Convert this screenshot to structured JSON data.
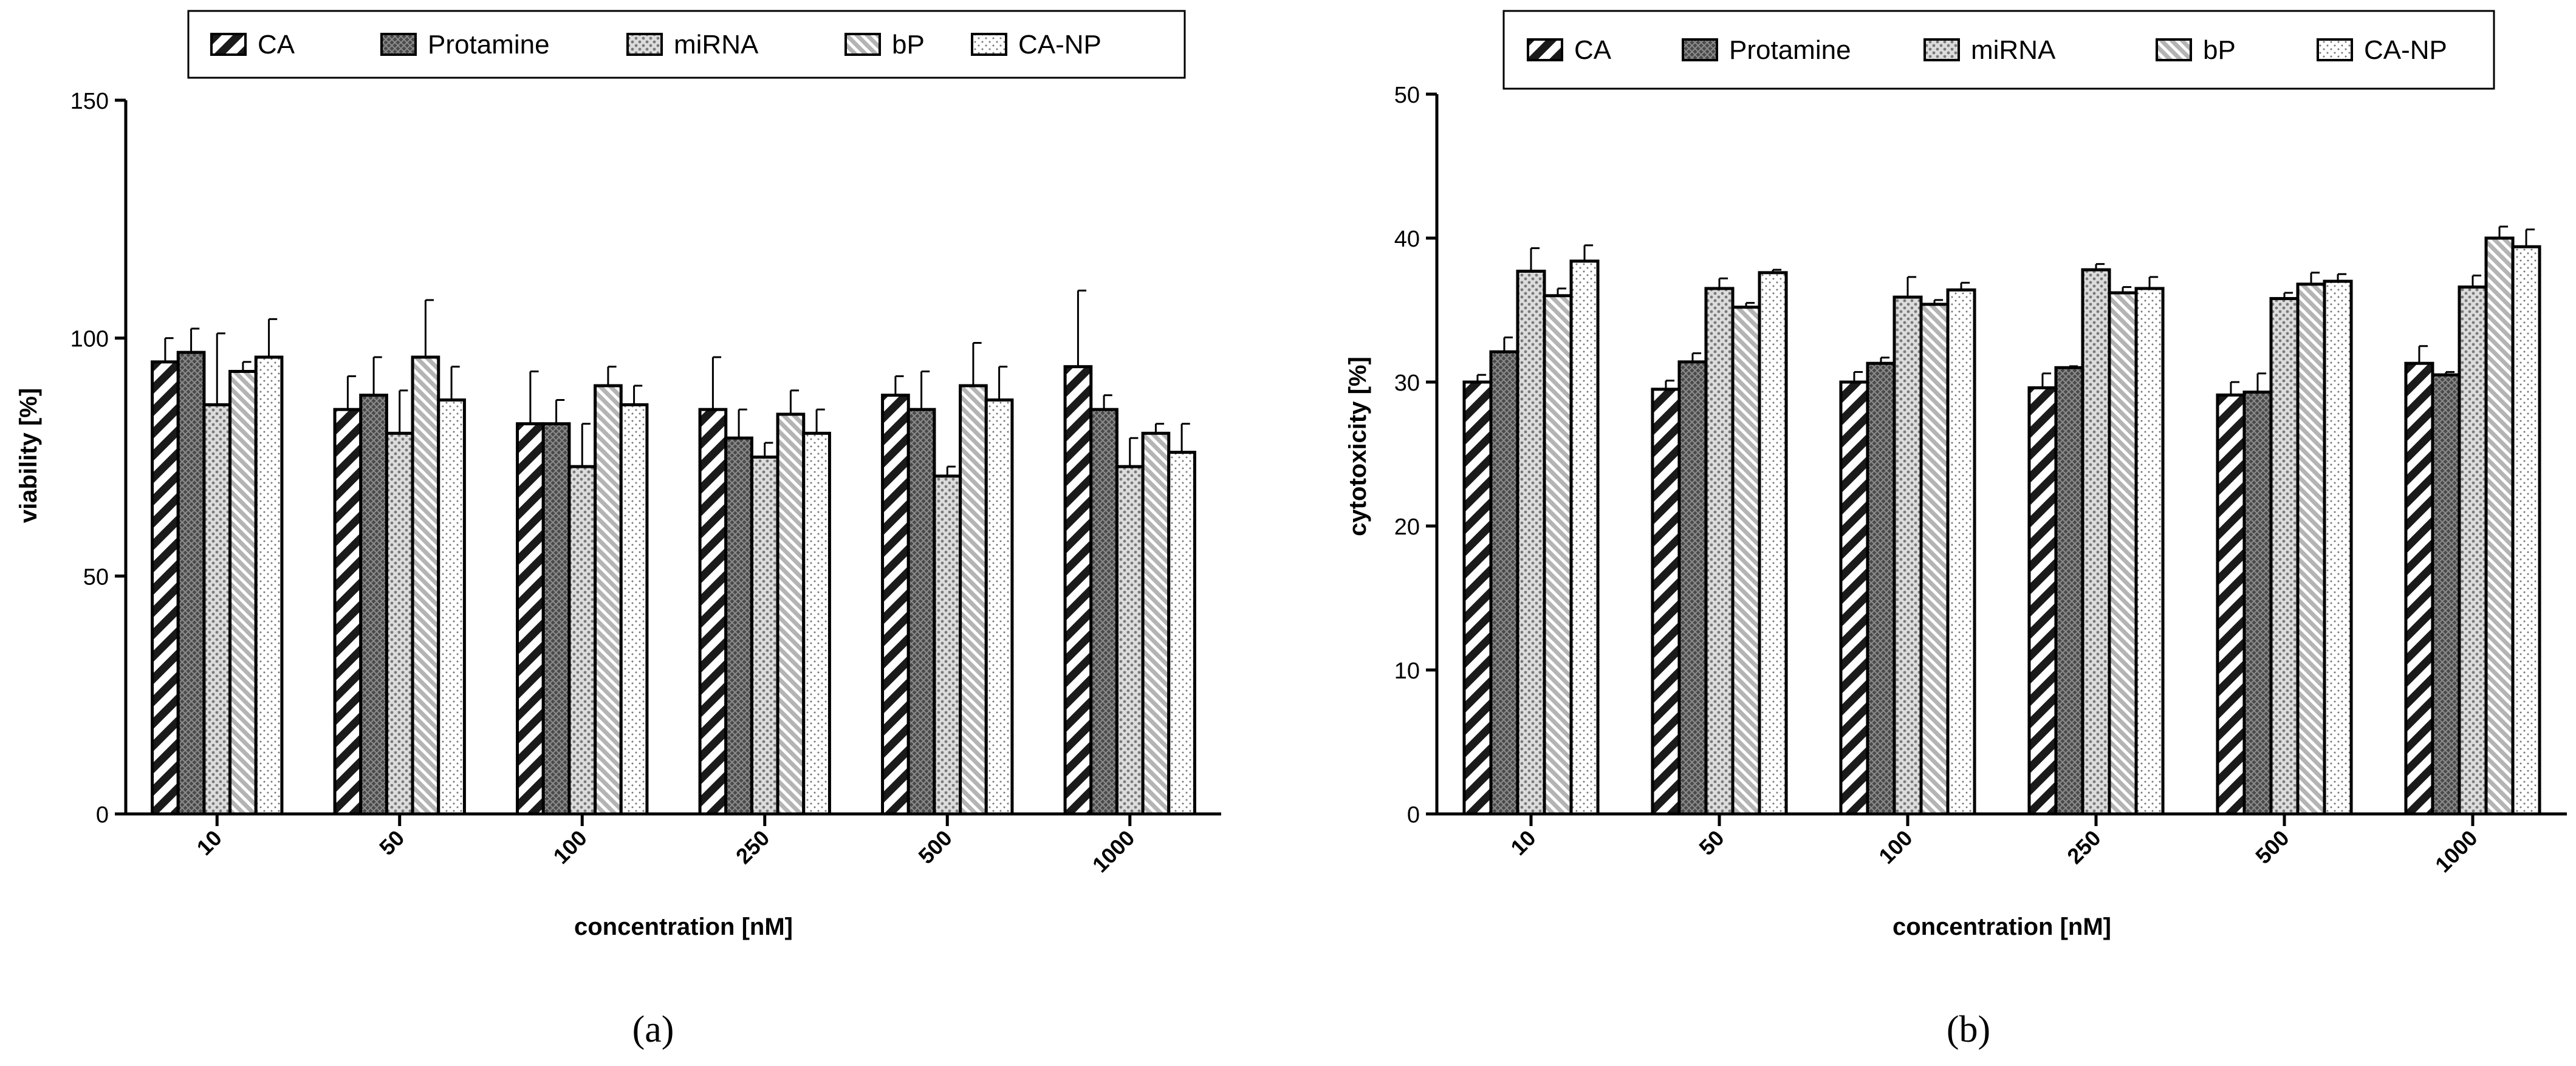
{
  "legend_labels": [
    "CA",
    "Protamine",
    "miRNA",
    "bP",
    "CA-NP"
  ],
  "chart_data": [
    {
      "type": "bar",
      "panel_label": "(a)",
      "xlabel": "concentration [nM]",
      "ylabel": "viability [%]",
      "ylim": [
        0,
        150
      ],
      "yticks": [
        0,
        50,
        100,
        150
      ],
      "categories": [
        "10",
        "50",
        "100",
        "250",
        "500",
        "1000"
      ],
      "series": [
        {
          "name": "CA",
          "values": [
            95,
            85,
            82,
            85,
            88,
            94
          ],
          "errors": [
            5,
            7,
            11,
            11,
            4,
            16
          ]
        },
        {
          "name": "Protamine",
          "values": [
            97,
            88,
            82,
            79,
            85,
            85
          ],
          "errors": [
            5,
            8,
            5,
            6,
            8,
            3
          ]
        },
        {
          "name": "miRNA",
          "values": [
            86,
            80,
            73,
            75,
            71,
            73
          ],
          "errors": [
            15,
            9,
            9,
            3,
            2,
            6
          ]
        },
        {
          "name": "bP",
          "values": [
            93,
            96,
            90,
            84,
            90,
            80
          ],
          "errors": [
            2,
            12,
            4,
            5,
            9,
            2
          ]
        },
        {
          "name": "CA-NP",
          "values": [
            96,
            87,
            86,
            80,
            87,
            76
          ],
          "errors": [
            8,
            7,
            4,
            5,
            7,
            6
          ]
        }
      ],
      "legend_position": "top"
    },
    {
      "type": "bar",
      "panel_label": "(b)",
      "xlabel": "concentration [nM]",
      "ylabel": "cytotoxicity [%]",
      "ylim": [
        0,
        50
      ],
      "yticks": [
        0,
        10,
        20,
        30,
        40,
        50
      ],
      "categories": [
        "10",
        "50",
        "100",
        "250",
        "500",
        "1000"
      ],
      "series": [
        {
          "name": "CA",
          "values": [
            30.0,
            29.5,
            30.0,
            29.6,
            29.1,
            31.3
          ],
          "errors": [
            0.5,
            0.6,
            0.7,
            1.0,
            0.9,
            1.2
          ]
        },
        {
          "name": "Protamine",
          "values": [
            32.1,
            31.4,
            31.3,
            31.0,
            29.3,
            30.5
          ],
          "errors": [
            1.0,
            0.6,
            0.4,
            0.1,
            1.3,
            0.2
          ]
        },
        {
          "name": "miRNA",
          "values": [
            37.7,
            36.5,
            35.9,
            37.8,
            35.8,
            36.6
          ],
          "errors": [
            1.6,
            0.7,
            1.4,
            0.4,
            0.4,
            0.8
          ]
        },
        {
          "name": "bP",
          "values": [
            36.0,
            35.2,
            35.4,
            36.2,
            36.8,
            40.0
          ],
          "errors": [
            0.5,
            0.3,
            0.3,
            0.4,
            0.8,
            0.8
          ]
        },
        {
          "name": "CA-NP",
          "values": [
            38.4,
            37.6,
            36.4,
            36.5,
            37.0,
            39.4
          ],
          "errors": [
            1.1,
            0.2,
            0.5,
            0.8,
            0.5,
            1.2
          ]
        }
      ],
      "legend_position": "top"
    }
  ]
}
